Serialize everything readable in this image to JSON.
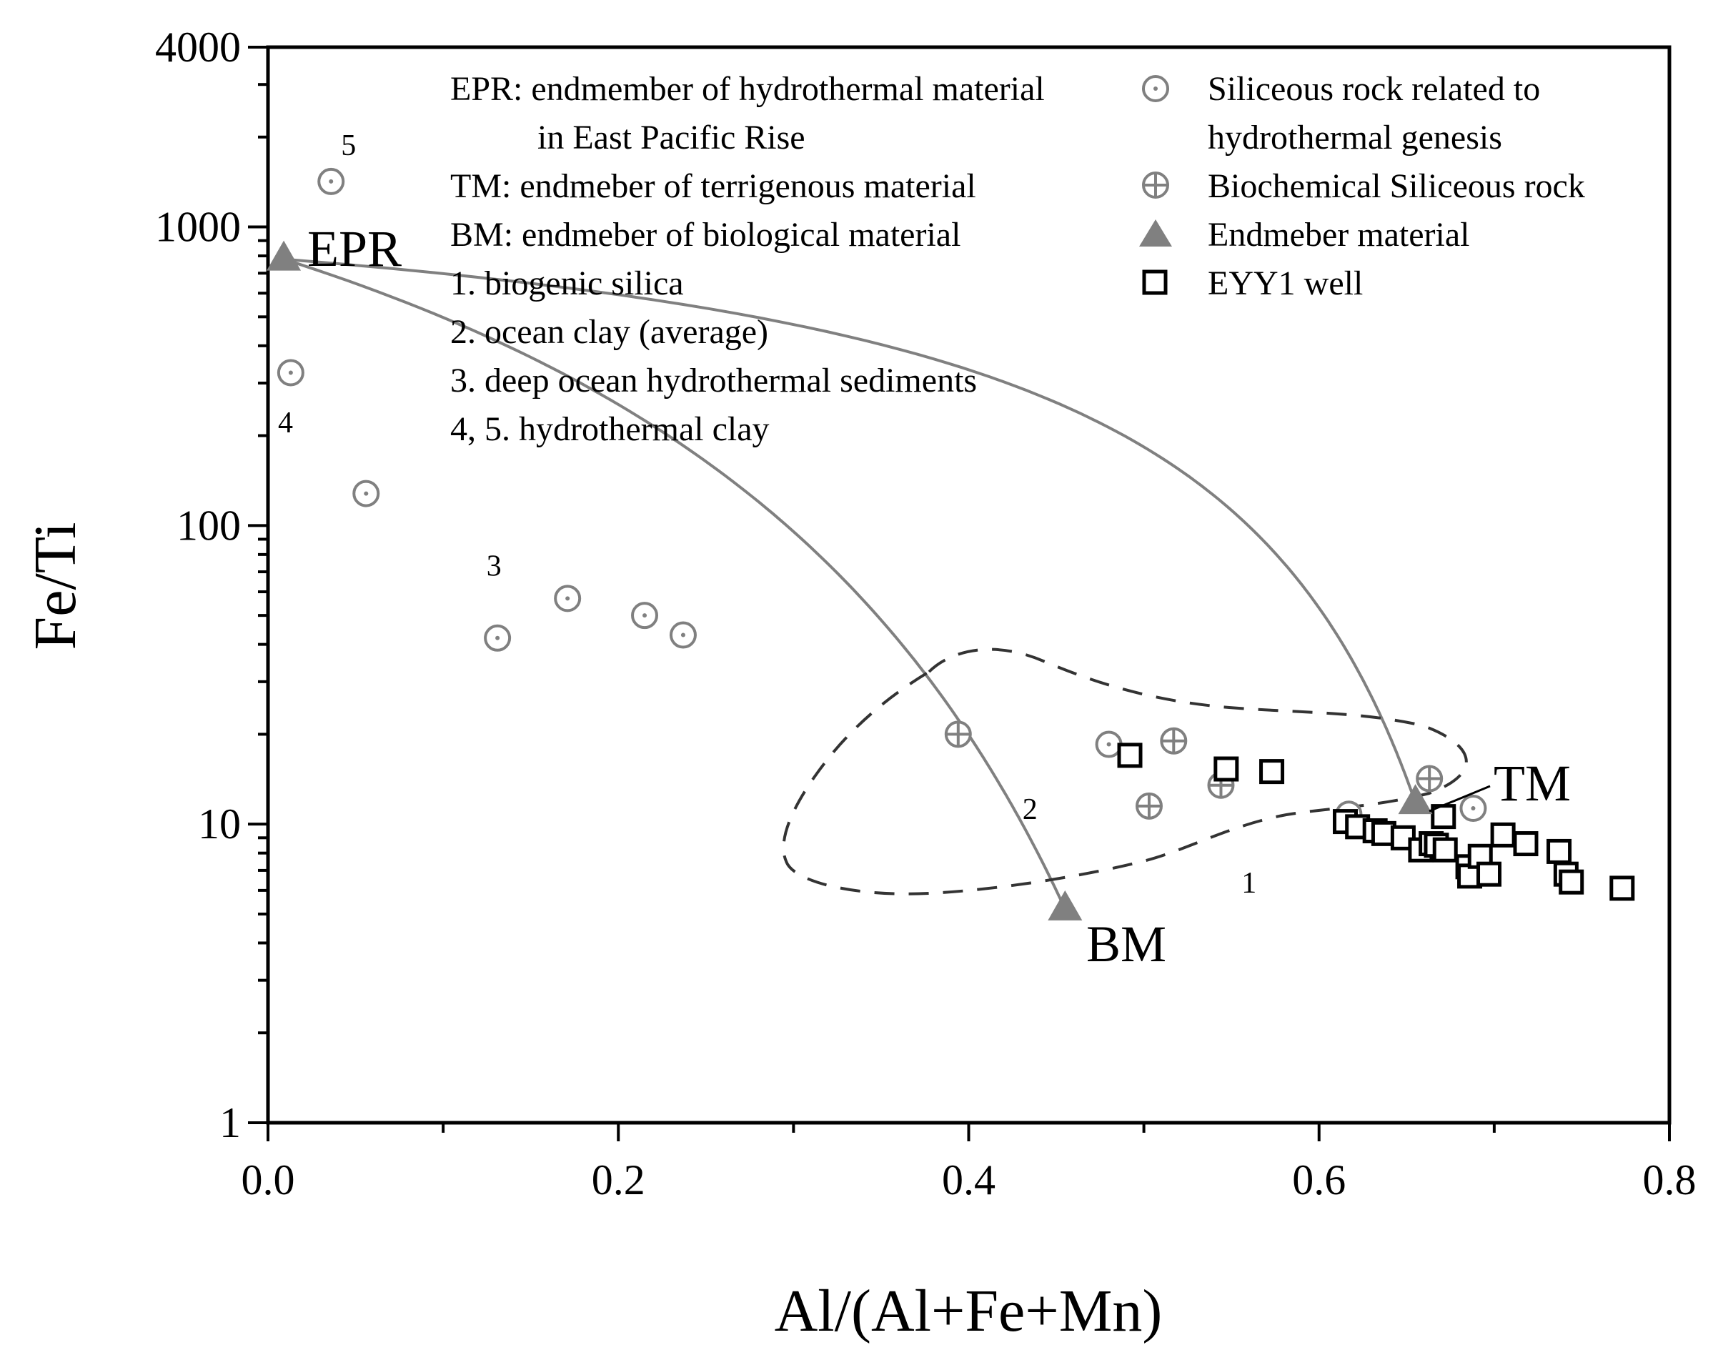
{
  "chart_data": {
    "type": "scatter",
    "xlabel": "Al/(Al+Fe+Mn)",
    "ylabel": "Fe/Ti",
    "xlim": [
      0.0,
      0.8
    ],
    "ylim": [
      1,
      4000
    ],
    "yscale": "log",
    "x_ticks": [
      0.0,
      0.2,
      0.4,
      0.6,
      0.8
    ],
    "x_tick_labels": [
      "0.0",
      "0.2",
      "0.4",
      "0.6",
      "0.8"
    ],
    "y_ticks": [
      1,
      10,
      100,
      1000,
      4000
    ],
    "y_tick_labels": [
      "1",
      "10",
      "100",
      "1000",
      "4000"
    ],
    "legend_text": [
      "EPR: endmember of hydrothermal material",
      "in East Pacific Rise",
      "TM: endmeber of terrigenous material",
      "BM: endmeber of biological material",
      "1. biogenic silica",
      "2. ocean clay (average)",
      "3. deep ocean hydrothermal sediments",
      "4, 5. hydrothermal clay"
    ],
    "legend_symbols": [
      "Siliceous rock related to",
      "hydrothermal genesis",
      "Biochemical Siliceous rock",
      "Endmeber material",
      "EYY1 well"
    ],
    "endmembers": [
      {
        "name": "EPR",
        "x": 0.009,
        "y": 780
      },
      {
        "name": "TM",
        "x": 0.655,
        "y": 11.8
      },
      {
        "name": "BM",
        "x": 0.455,
        "y": 5.2
      }
    ],
    "region_labels": [
      {
        "text": "1",
        "x": 0.56,
        "y": 5.9
      },
      {
        "text": "2",
        "x": 0.435,
        "y": 10.4
      },
      {
        "text": "3",
        "x": 0.129,
        "y": 68
      },
      {
        "text": "4",
        "x": 0.01,
        "y": 205
      },
      {
        "text": "5",
        "x": 0.046,
        "y": 1740
      }
    ],
    "series": [
      {
        "name": "Siliceous rock related to hydrothermal genesis",
        "points": [
          [
            0.036,
            1420
          ],
          [
            0.013,
            325
          ],
          [
            0.056,
            128
          ],
          [
            0.131,
            42
          ],
          [
            0.171,
            57
          ],
          [
            0.215,
            50
          ],
          [
            0.237,
            43
          ],
          [
            0.48,
            18.5
          ],
          [
            0.617,
            10.8
          ],
          [
            0.688,
            11.3
          ]
        ]
      },
      {
        "name": "Biochemical Siliceous rock",
        "points": [
          [
            0.394,
            20
          ],
          [
            0.517,
            19
          ],
          [
            0.503,
            11.5
          ],
          [
            0.544,
            13.5
          ],
          [
            0.663,
            14.2
          ]
        ]
      },
      {
        "name": "EYY1 well",
        "points": [
          [
            0.492,
            17
          ],
          [
            0.547,
            15.3
          ],
          [
            0.573,
            15
          ],
          [
            0.615,
            10.2
          ],
          [
            0.622,
            9.8
          ],
          [
            0.632,
            9.5
          ],
          [
            0.637,
            9.3
          ],
          [
            0.648,
            9.0
          ],
          [
            0.658,
            8.2
          ],
          [
            0.664,
            8.6
          ],
          [
            0.667,
            8.5
          ],
          [
            0.672,
            8.2
          ],
          [
            0.671,
            10.6
          ],
          [
            0.685,
            7.2
          ],
          [
            0.686,
            6.7
          ],
          [
            0.692,
            7.8
          ],
          [
            0.697,
            6.8
          ],
          [
            0.705,
            9.2
          ],
          [
            0.718,
            8.6
          ],
          [
            0.737,
            8.1
          ],
          [
            0.741,
            6.8
          ],
          [
            0.744,
            6.4
          ],
          [
            0.773,
            6.1
          ]
        ]
      }
    ],
    "curves": [
      {
        "name": "EPR-TM mixing",
        "from": "EPR",
        "to": "TM"
      },
      {
        "name": "EPR-BM mixing",
        "from": "EPR",
        "to": "BM"
      }
    ],
    "region_2_outline": "dashed envelope around ocean clay field"
  },
  "colors": {
    "hydrothermal": "#808080",
    "biochemical": "#808080",
    "endmember": "#808080",
    "eyy1": "#000000",
    "dashed": "#333333"
  }
}
